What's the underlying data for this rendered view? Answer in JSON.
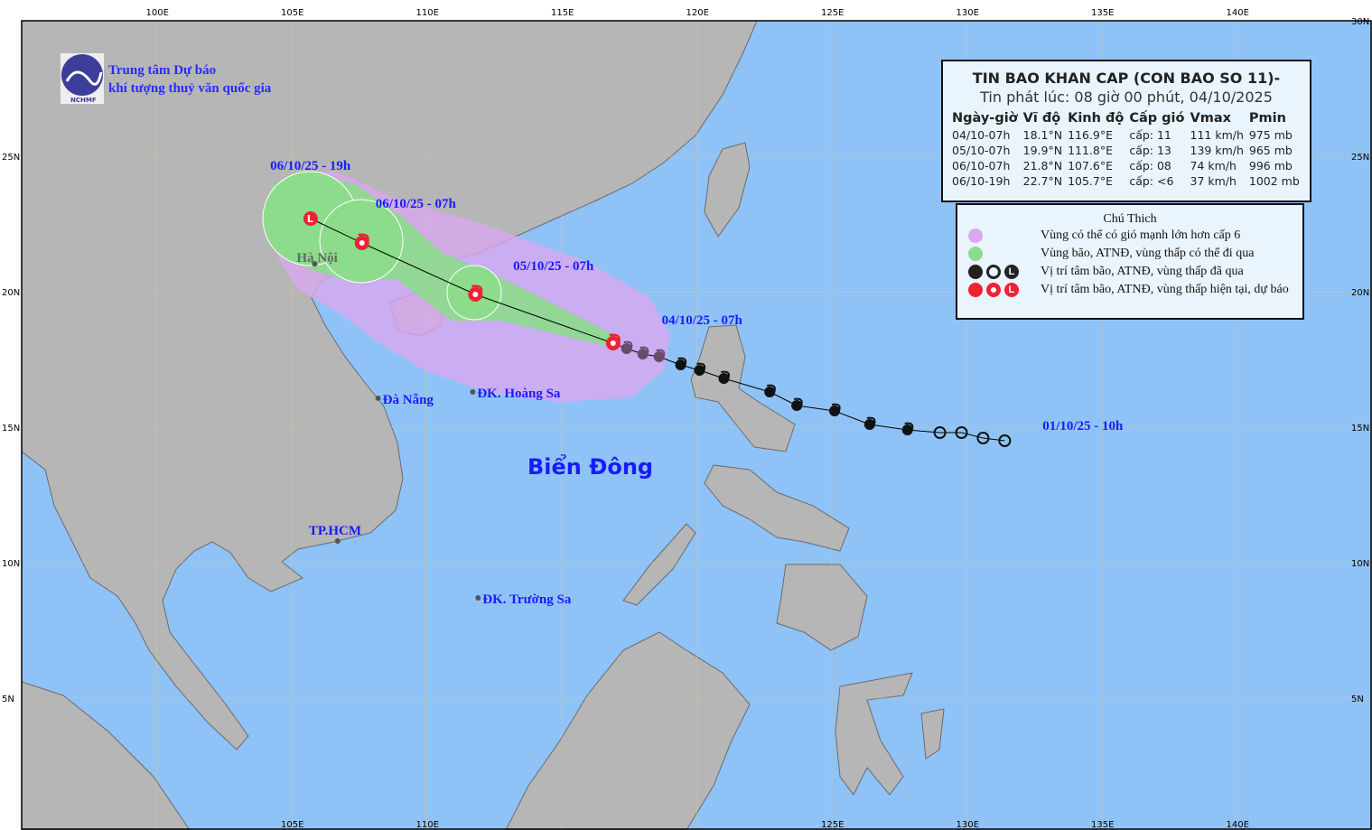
{
  "organization": {
    "line1": "Trung tâm Dự báo",
    "line2": "khí tượng thuỷ văn quốc gia",
    "logo_text": "NCHMF"
  },
  "info": {
    "title": "TIN BAO KHAN CAP (CON BAO SO 11)-",
    "issued": "Tin phát lúc: 08 giờ 00 phút, 04/10/2025",
    "headers": [
      "Ngày-giờ",
      "Vĩ độ",
      "Kinh độ",
      "Cấp gió",
      "Vmax",
      "Pmin"
    ],
    "rows": [
      [
        "04/10-07h",
        "18.1°N",
        "116.9°E",
        "cấp: 11",
        "111 km/h",
        "975 mb"
      ],
      [
        "05/10-07h",
        "19.9°N",
        "111.8°E",
        "cấp: 13",
        "139 km/h",
        "965 mb"
      ],
      [
        "06/10-07h",
        "21.8°N",
        "107.6°E",
        "cấp: 08",
        "74 km/h",
        "996 mb"
      ],
      [
        "06/10-19h",
        "22.7°N",
        "105.7°E",
        "cấp: <6",
        "37 km/h",
        "1002 mb"
      ]
    ]
  },
  "legend": {
    "title": "Chú Thich",
    "items": [
      {
        "label": "Vùng có thể có gió mạnh lớn hơn cấp 6",
        "color": "#d9a8f0"
      },
      {
        "label": "Vùng bão, ATNĐ, vùng thấp có thể đi qua",
        "color": "#8cdc8c"
      },
      {
        "label": "Vị trí tâm bão, ATNĐ, vùng thấp đã qua",
        "color": "#222222"
      },
      {
        "label": "Vị trí tâm bão, ATNĐ, vùng thấp hiện tại, dự báo",
        "color": "#ee2233"
      }
    ]
  },
  "time_labels": [
    {
      "text": "06/10/25 - 19h",
      "lon": 104.2,
      "lat": 24.5
    },
    {
      "text": "06/10/25 - 07h",
      "lon": 108.1,
      "lat": 23.1
    },
    {
      "text": "05/10/25 - 07h",
      "lon": 113.2,
      "lat": 20.8
    },
    {
      "text": "04/10/25 - 07h",
      "lon": 118.7,
      "lat": 18.8
    },
    {
      "text": "01/10/25 - 10h",
      "lon": 132.8,
      "lat": 14.9
    }
  ],
  "places": [
    {
      "text": "Hà Nội",
      "lon": 105.85,
      "lat": 21.03,
      "style": "hanoi"
    },
    {
      "text": "Đà Nẵng",
      "lon": 108.2,
      "lat": 16.07,
      "style": "place"
    },
    {
      "text": "ĐK. Hoàng Sa",
      "lon": 111.7,
      "lat": 16.3,
      "style": "place"
    },
    {
      "text": "TP.HCM",
      "lon": 106.7,
      "lat": 10.8,
      "style": "place"
    },
    {
      "text": "ĐK. Trường Sa",
      "lon": 111.9,
      "lat": 8.7,
      "style": "place"
    }
  ],
  "sea_label": "Biển Đông",
  "past_track": [
    [
      131.4,
      14.5
    ],
    [
      130.6,
      14.6
    ],
    [
      129.8,
      14.8
    ],
    [
      129.0,
      14.8
    ],
    [
      127.8,
      14.9
    ],
    [
      126.4,
      15.1
    ],
    [
      125.1,
      15.6
    ],
    [
      123.7,
      15.8
    ],
    [
      122.7,
      16.3
    ],
    [
      121.0,
      16.8
    ],
    [
      120.1,
      17.1
    ],
    [
      119.4,
      17.3
    ],
    [
      118.6,
      17.6
    ],
    [
      118.0,
      17.7
    ],
    [
      117.4,
      17.9
    ]
  ],
  "forecast_track": [
    {
      "lon": 116.9,
      "lat": 18.1,
      "kind": "storm"
    },
    {
      "lon": 111.8,
      "lat": 19.9,
      "kind": "storm"
    },
    {
      "lon": 107.6,
      "lat": 21.8,
      "kind": "storm"
    },
    {
      "lon": 105.7,
      "lat": 22.7,
      "kind": "low"
    }
  ],
  "axes": {
    "top": [
      "100E",
      "105E",
      "110E",
      "115E",
      "120E",
      "125E",
      "130E",
      "135E",
      "140E"
    ],
    "bottom": [
      "105E",
      "110E",
      "125E",
      "130E",
      "135E",
      "140E"
    ],
    "lat": [
      "25N",
      "20N",
      "15N",
      "10N",
      "5N"
    ],
    "lat_right": [
      "30N",
      "25N",
      "20N",
      "15N",
      "10N",
      "5N"
    ]
  },
  "colors": {
    "ocean": "#8fc3f7",
    "land": "#b6b6b6",
    "wind_zone": "#d9a8f0",
    "track_zone": "#8cdc8c",
    "past": "#111111",
    "current": "#ee2233"
  }
}
